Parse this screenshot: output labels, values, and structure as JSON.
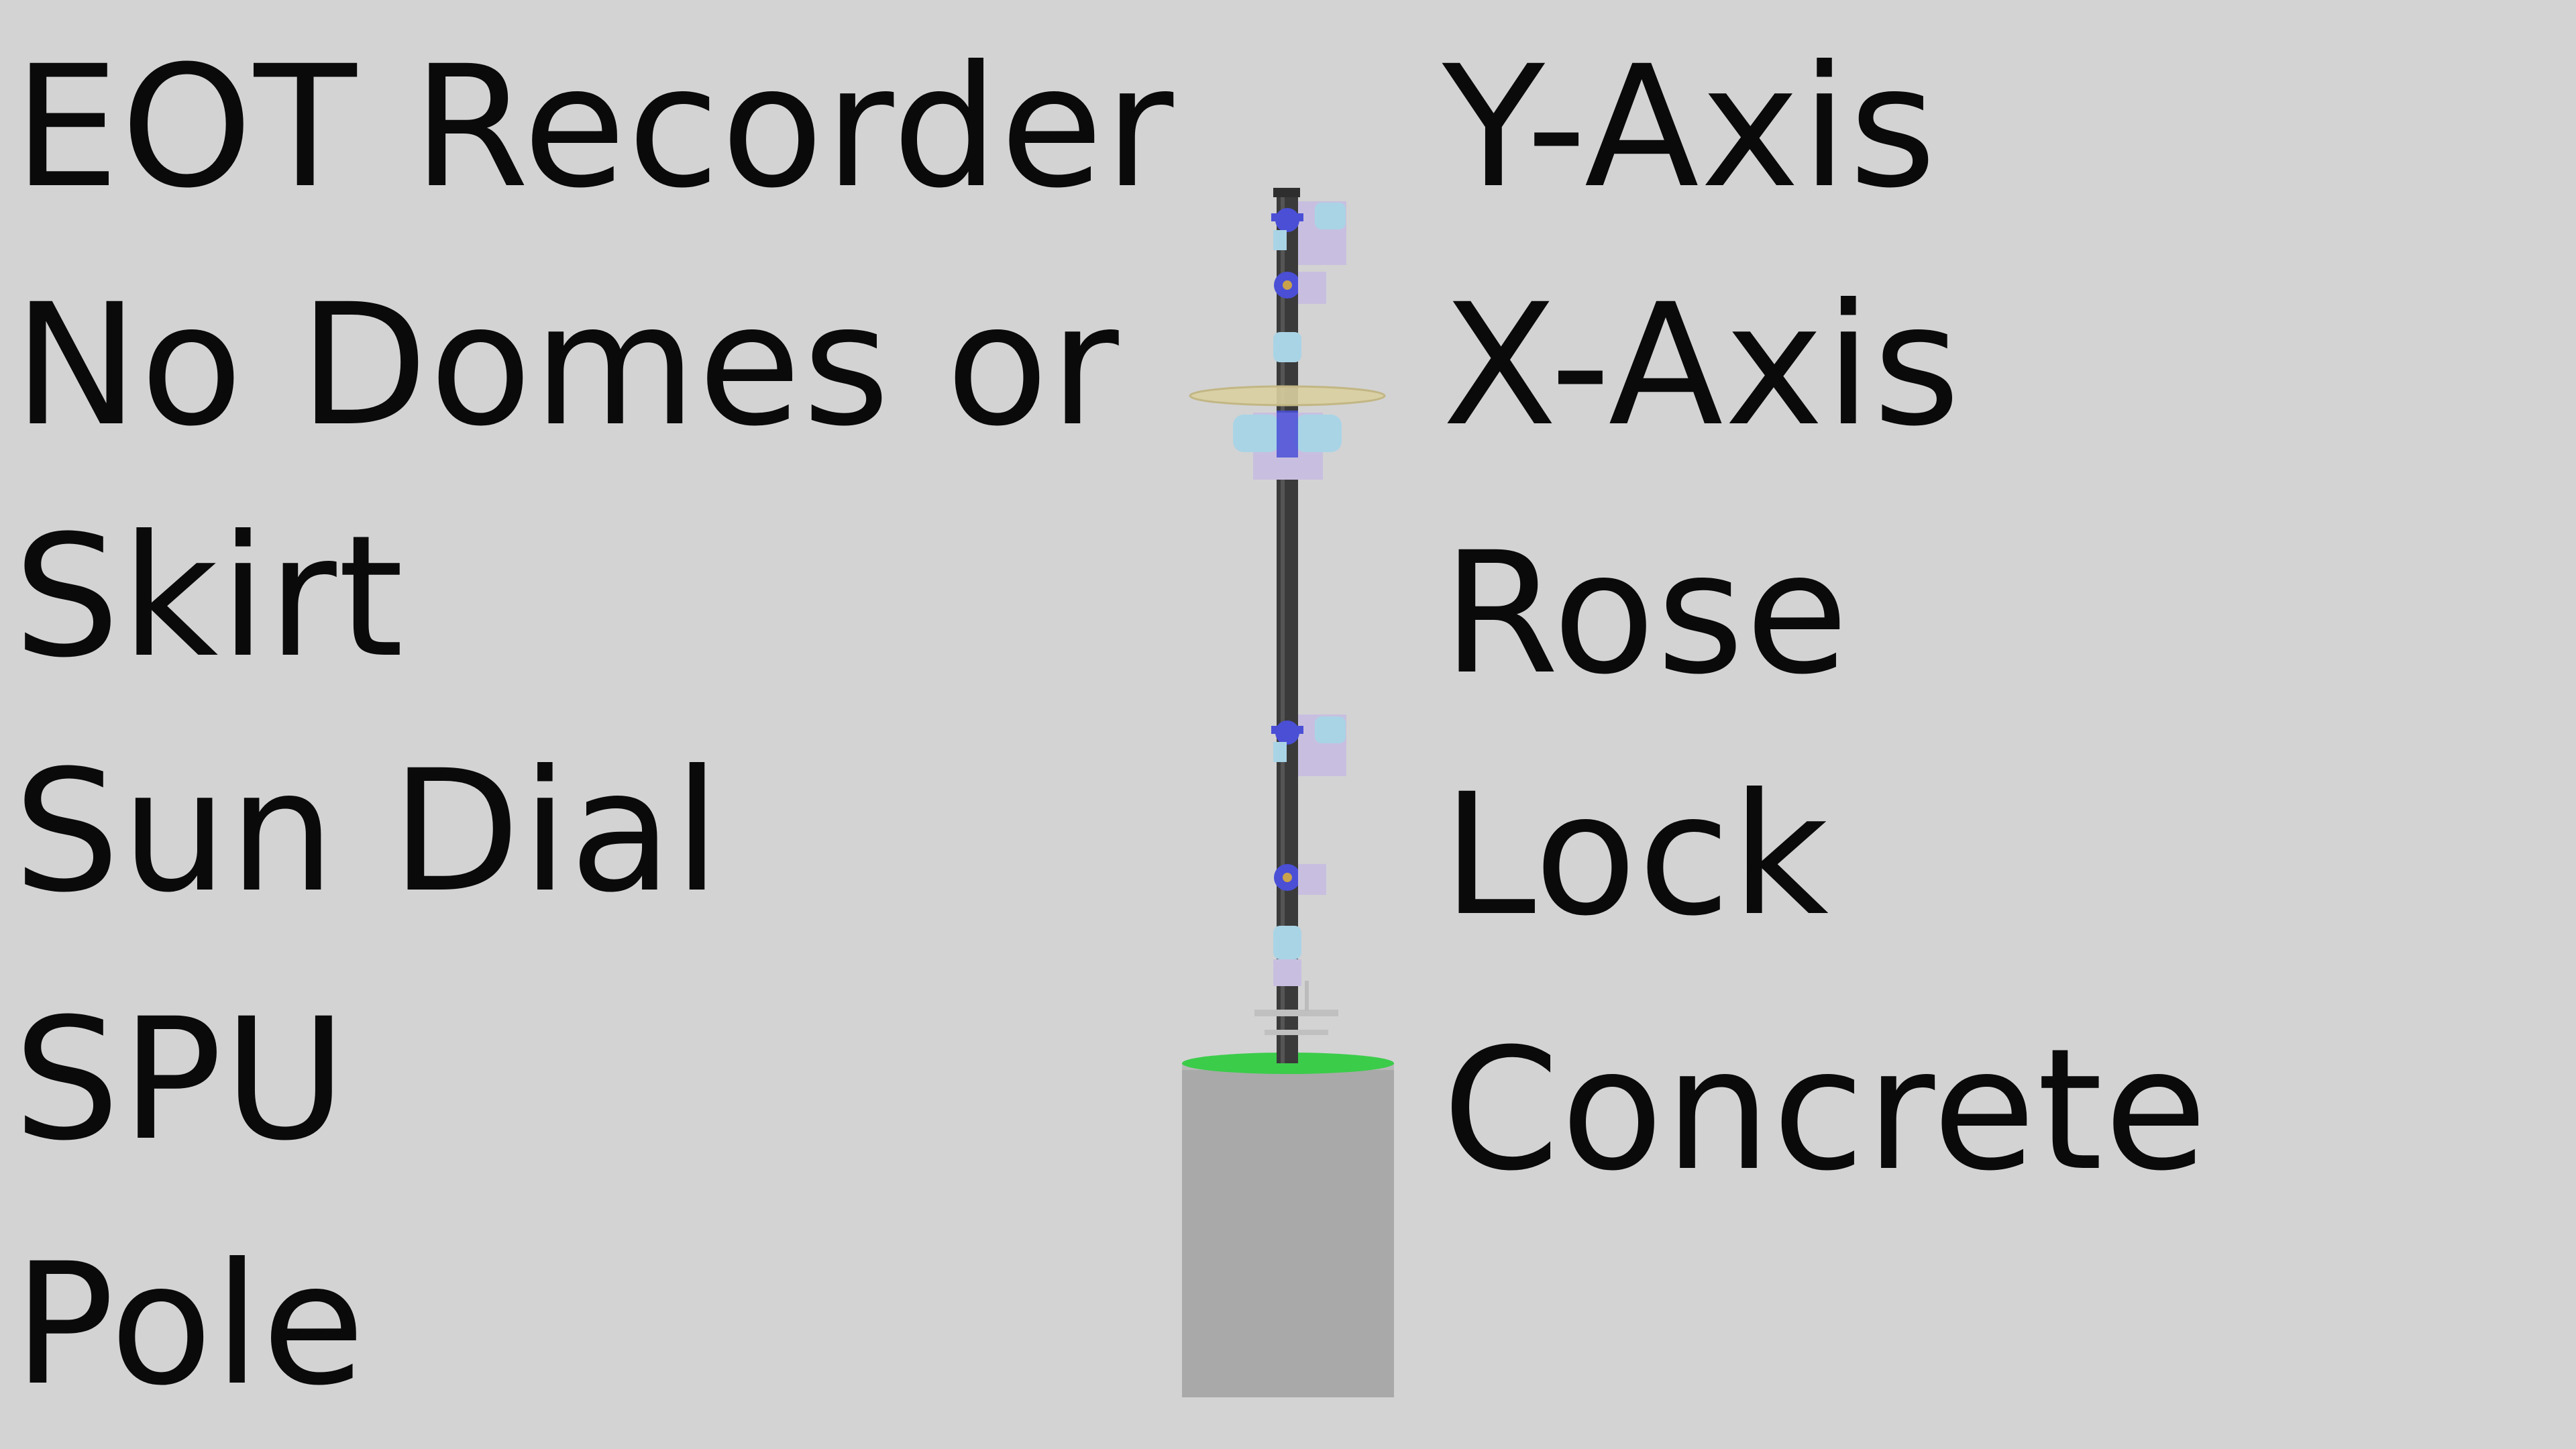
{
  "labels_left": [
    "EOT Recorder",
    "No Domes or",
    "Skirt",
    "Sun Dial",
    "SPU",
    "Pole"
  ],
  "labels_right": [
    "Y-Axis",
    "X-Axis",
    "Rose",
    "Lock",
    "Concrete"
  ],
  "colors": {
    "background": "#d3d3d3",
    "text": "#0a0a0a",
    "pole": "#3a3a3a",
    "concrete": "#a9a9a9",
    "grass_ring": "#3bcc4a",
    "bearing_blue": "#4a4fd6",
    "housing_lavender": "#c8bfe0",
    "housing_cyan": "#a9d4e6",
    "sundial_disc": "#d9cfa0"
  }
}
